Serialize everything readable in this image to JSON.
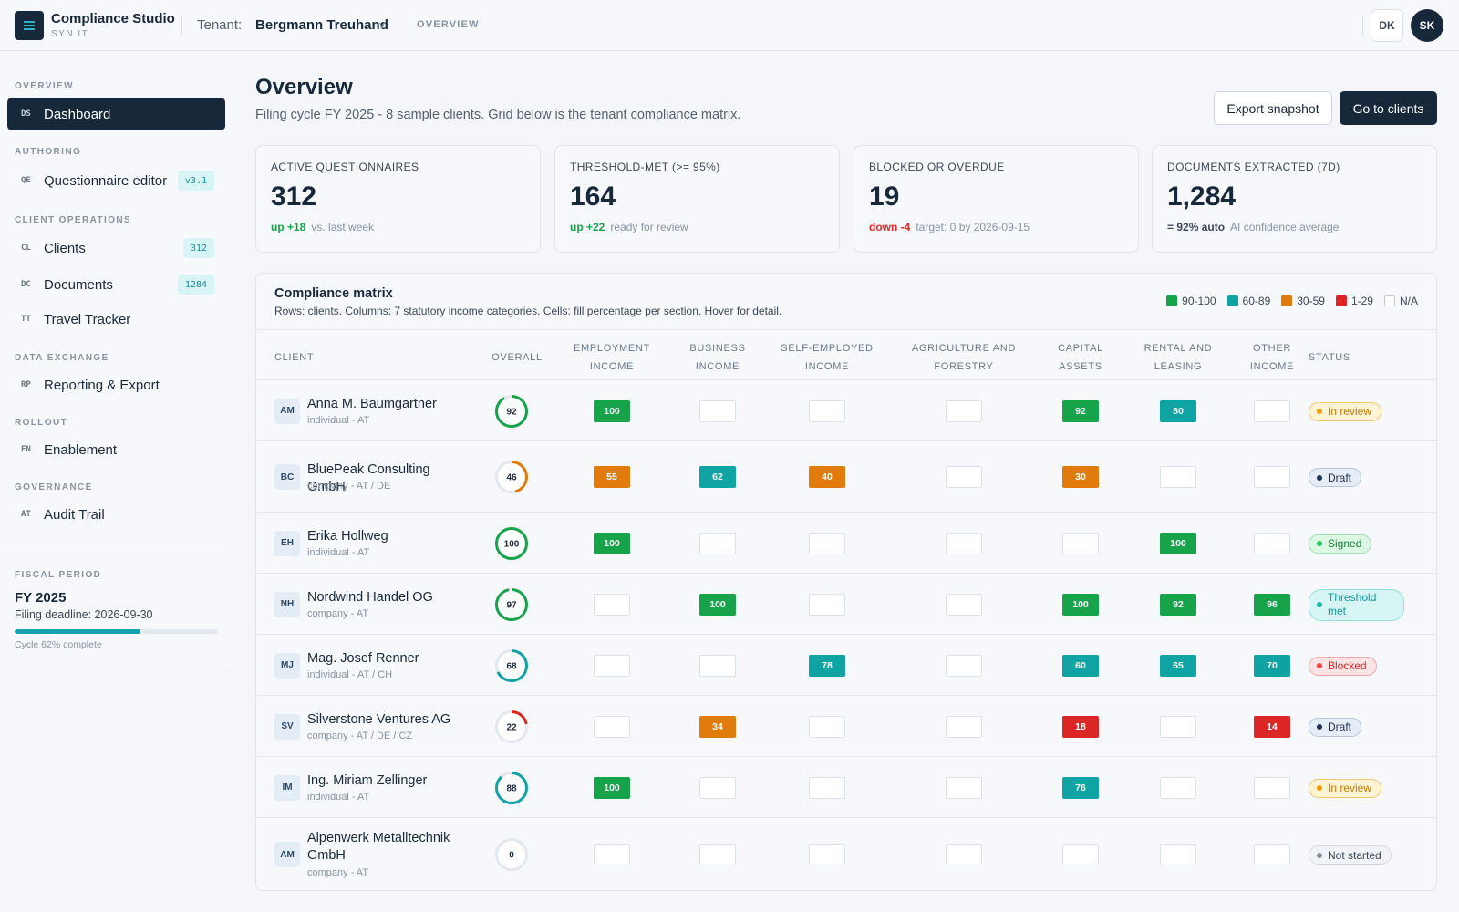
{
  "app": {
    "title": "Compliance Studio",
    "subtitle": "SYN IT"
  },
  "header": {
    "tenant_label": "Tenant:",
    "tenant_value": "Bergmann Treuhand",
    "tenant_chevron": "v",
    "breadcrumb": "OVERVIEW",
    "user_initials": "DK",
    "avatar_initials": "SK"
  },
  "sidebar": {
    "sections": {
      "overview": "OVERVIEW",
      "authoring": "AUTHORING",
      "client_ops": "CLIENT OPERATIONS",
      "data_exchange": "DATA EXCHANGE",
      "rollout": "ROLLOUT",
      "governance": "GOVERNANCE"
    },
    "items": {
      "dashboard": {
        "code": "DS",
        "label": "Dashboard"
      },
      "questionnaire": {
        "code": "QE",
        "label": "Questionnaire editor",
        "badge": "v3.1"
      },
      "clients": {
        "code": "CL",
        "label": "Clients",
        "badge": "312"
      },
      "documents": {
        "code": "DC",
        "label": "Documents",
        "badge": "1284"
      },
      "travel": {
        "code": "TT",
        "label": "Travel Tracker"
      },
      "reporting": {
        "code": "RP",
        "label": "Reporting & Export"
      },
      "enablement": {
        "code": "EN",
        "label": "Enablement"
      },
      "audit": {
        "code": "AT",
        "label": "Audit Trail"
      }
    },
    "fiscal": {
      "label": "FISCAL PERIOD",
      "year": "FY 2025",
      "deadline": "Filing deadline: 2026-09-30",
      "progress": 0.62,
      "note": "Cycle 62% complete"
    }
  },
  "main": {
    "title": "Overview",
    "subtitle": "Filing cycle FY 2025 - 8 sample clients. Grid below is the tenant compliance matrix.",
    "buttons": {
      "export": "Export snapshot",
      "clients": "Go to clients"
    }
  },
  "kpis": [
    {
      "label": "ACTIVE QUESTIONNAIRES",
      "value": "312",
      "delta": "up +18",
      "note": "vs. last week"
    },
    {
      "label": "THRESHOLD-MET (>= 95%)",
      "value": "164",
      "delta": "up +22",
      "note": "ready for review"
    },
    {
      "label": "BLOCKED OR OVERDUE",
      "value": "19",
      "delta": "down -4",
      "note": "target: 0 by 2026-09-15"
    },
    {
      "label": "DOCUMENTS EXTRACTED (7D)",
      "value": "1,284",
      "delta": "= 92% auto",
      "note": "AI confidence average"
    }
  ],
  "matrix": {
    "title": "Compliance matrix",
    "subtitle": "Rows: clients. Columns: 7 statutory income categories. Cells: fill percentage per section. Hover for detail.",
    "legend": [
      "90-100",
      "60-89",
      "30-59",
      "1-29",
      "N/A"
    ],
    "headers": {
      "client": "CLIENT",
      "overall": "OVERALL",
      "c1": [
        "EMPLOYMENT",
        "INCOME"
      ],
      "c2": [
        "BUSINESS",
        "INCOME"
      ],
      "c3": [
        "SELF-EMPLOYED",
        "INCOME"
      ],
      "c4": [
        "AGRICULTURE AND",
        "FORESTRY"
      ],
      "c5": [
        "CAPITAL",
        "ASSETS"
      ],
      "c6": [
        "RENTAL AND",
        "LEASING"
      ],
      "c7": [
        "OTHER",
        "INCOME"
      ],
      "status": "STATUS"
    },
    "rows": [
      {
        "initials": "AM",
        "name": "Anna M. Baumgartner",
        "sub": "individual - AT",
        "overall": 92,
        "cells": [
          100,
          null,
          null,
          null,
          92,
          80,
          null
        ],
        "status": "In review"
      },
      {
        "initials": "BC",
        "name": "BluePeak Consulting GmbH",
        "sub": "company - AT / DE",
        "overall": 46,
        "cells": [
          55,
          62,
          40,
          null,
          30,
          null,
          null
        ],
        "status": "Draft"
      },
      {
        "initials": "EH",
        "name": "Erika Hollweg",
        "sub": "individual - AT",
        "overall": 100,
        "cells": [
          100,
          null,
          null,
          null,
          null,
          100,
          null
        ],
        "status": "Signed"
      },
      {
        "initials": "NH",
        "name": "Nordwind Handel OG",
        "sub": "company - AT",
        "overall": 97,
        "cells": [
          null,
          100,
          null,
          null,
          100,
          92,
          96
        ],
        "status": "Threshold met"
      },
      {
        "initials": "MJ",
        "name": "Mag. Josef Renner",
        "sub": "individual - AT / CH",
        "overall": 68,
        "cells": [
          null,
          null,
          78,
          null,
          60,
          65,
          70
        ],
        "status": "Blocked"
      },
      {
        "initials": "SV",
        "name": "Silverstone Ventures AG",
        "sub": "company - AT / DE / CZ",
        "overall": 22,
        "cells": [
          null,
          34,
          null,
          null,
          18,
          null,
          14
        ],
        "status": "Draft"
      },
      {
        "initials": "IM",
        "name": "Ing. Miriam Zellinger",
        "sub": "individual - AT",
        "overall": 88,
        "cells": [
          100,
          null,
          null,
          null,
          76,
          null,
          null
        ],
        "status": "In review"
      },
      {
        "initials": "AM",
        "name": "Alpenwerk Metalltechnik GmbH",
        "sub": "company - AT",
        "overall": 0,
        "cells": [
          null,
          null,
          null,
          null,
          null,
          null,
          null
        ],
        "status": "Not started"
      }
    ]
  },
  "colors": {
    "navy": "#17283a",
    "teal": "#14a3ad",
    "band_90_100": "#16a34a",
    "band_60_89": "#0fa3a3",
    "band_30_59": "#e07b0c",
    "band_1_29": "#dc2626",
    "status": {
      "In review": {
        "bg": "#fef3d4",
        "border": "#f6c66b",
        "text": "#c97a06",
        "dot": "#f59e0b"
      },
      "Draft": {
        "bg": "#e6edf6",
        "border": "#b7c6d8",
        "text": "#1e3350",
        "dot": "#1e3350"
      },
      "Signed": {
        "bg": "#dcf7e3",
        "border": "#9fe0b1",
        "text": "#16803a",
        "dot": "#22c55e"
      },
      "Threshold met": {
        "bg": "#d6f5f4",
        "border": "#8fe0dc",
        "text": "#0e9a9a",
        "dot": "#14b8a6"
      },
      "Blocked": {
        "bg": "#fde4e4",
        "border": "#f3a6a6",
        "text": "#d12c2c",
        "dot": "#ef4444"
      },
      "Not started": {
        "bg": "#f1f3f6",
        "border": "#d6dbe2",
        "text": "#3b4756",
        "dot": "#8793a2"
      }
    }
  }
}
